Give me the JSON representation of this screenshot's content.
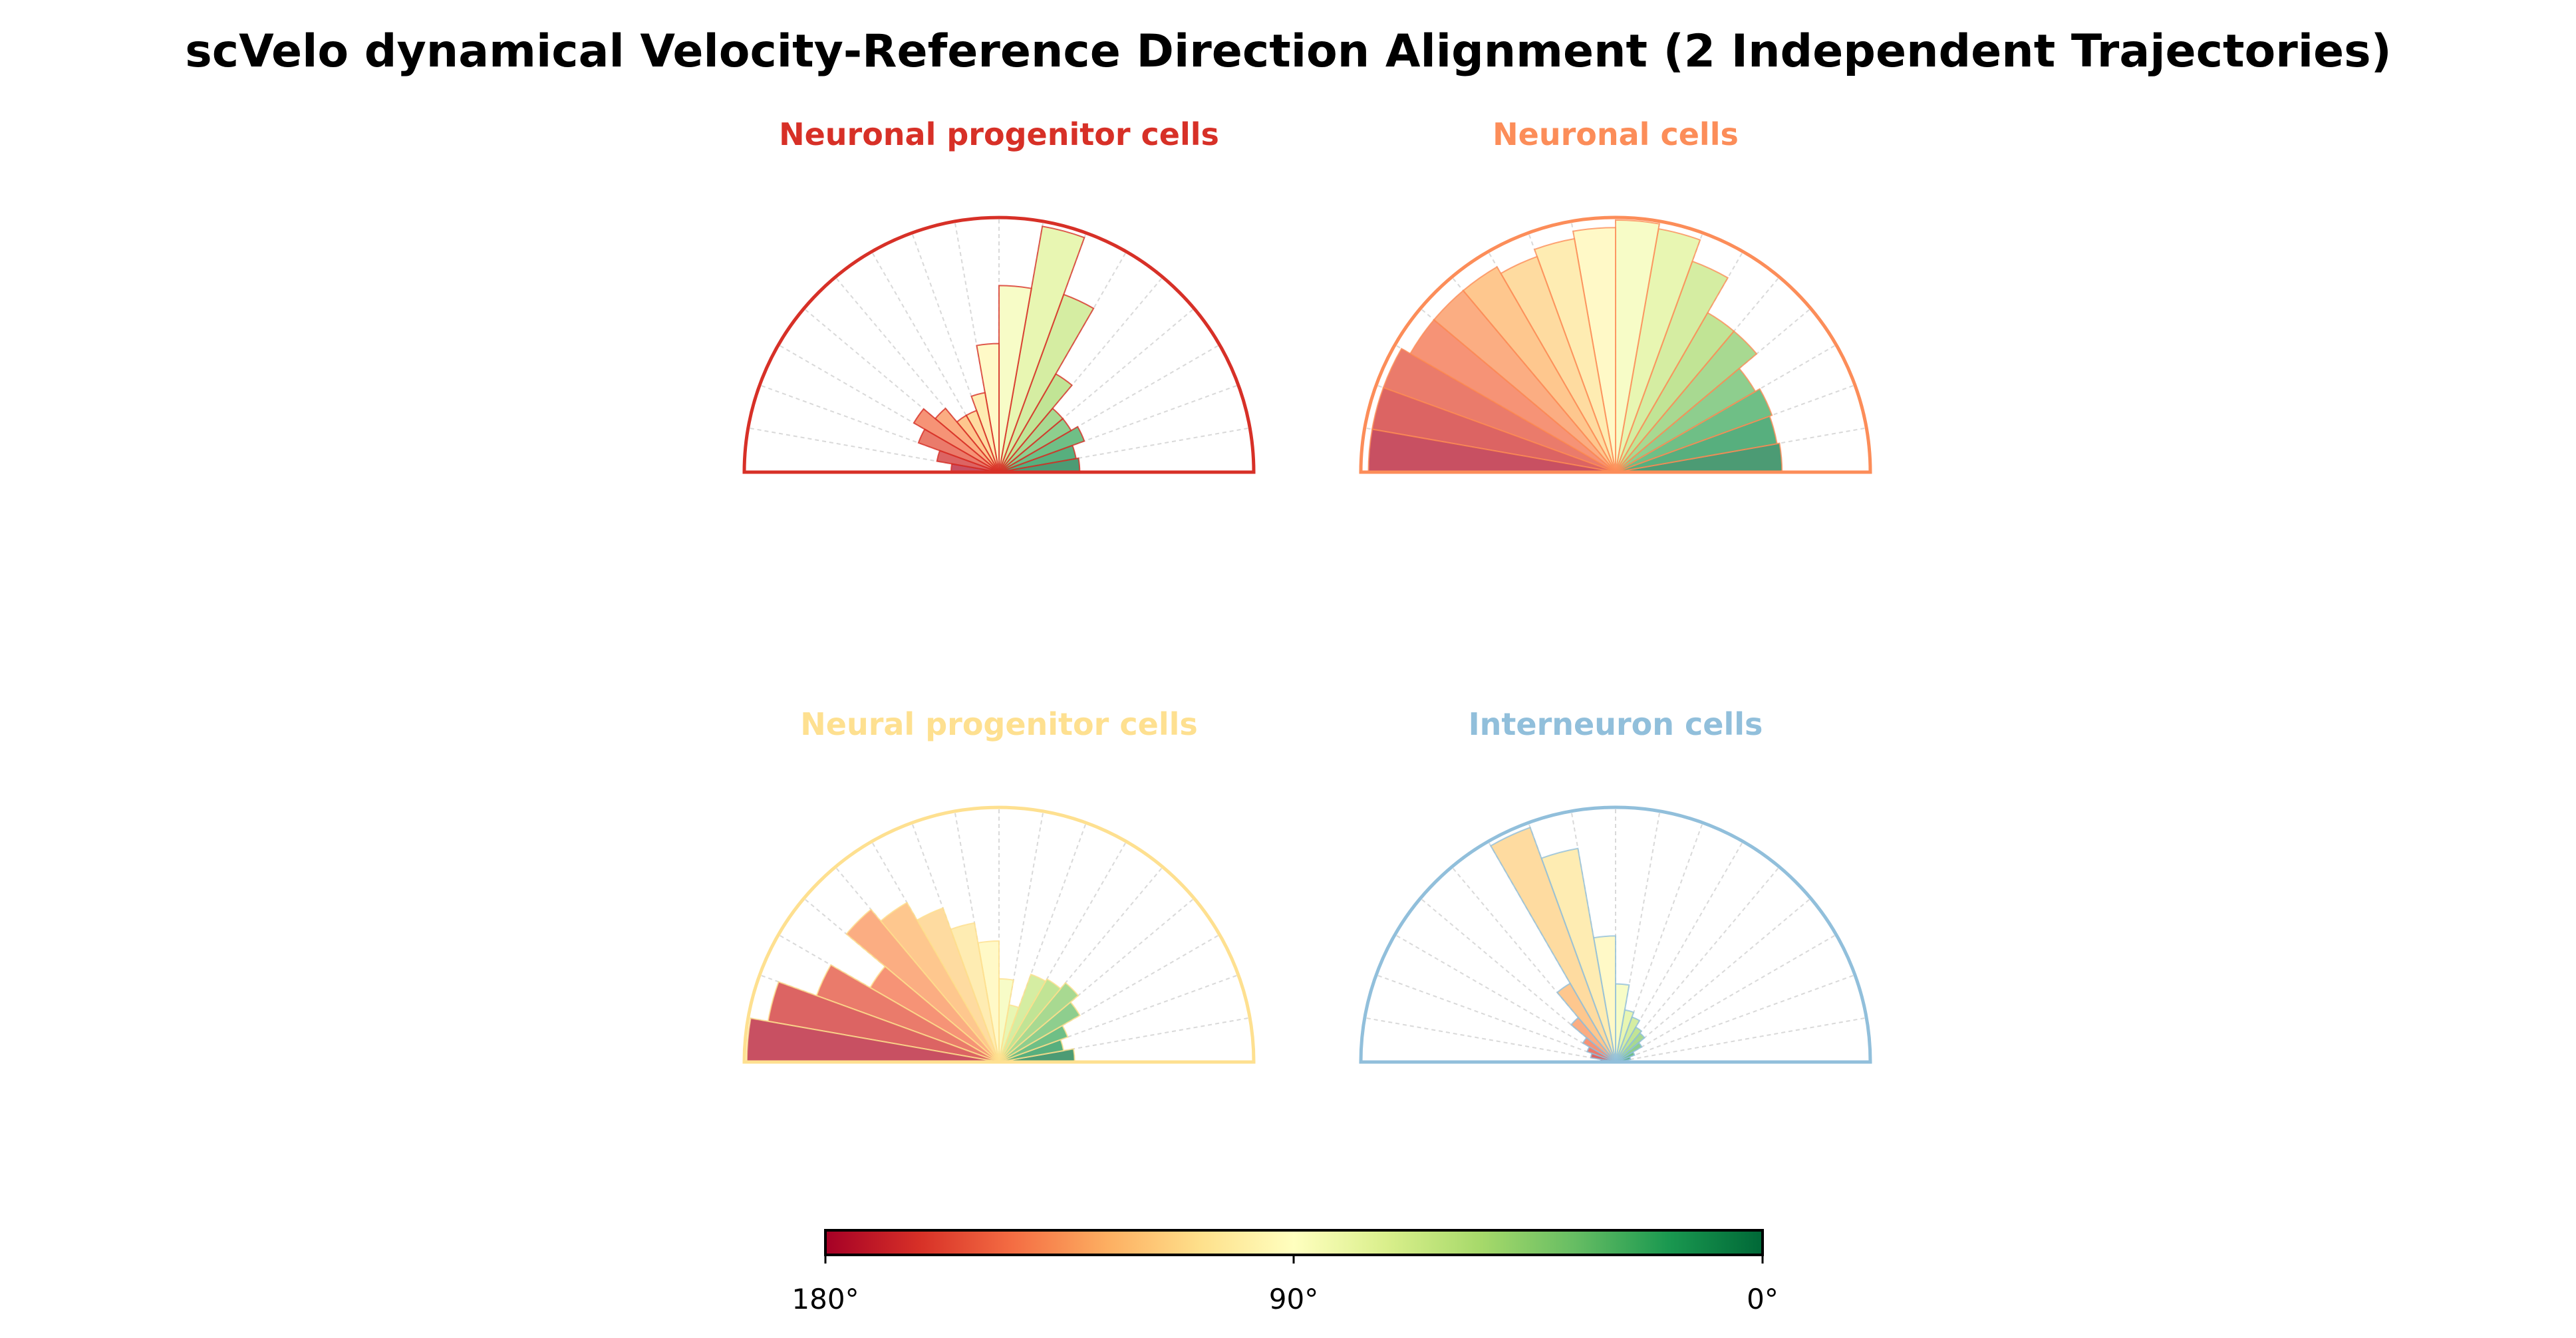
{
  "figure_title": "scVelo dynamical Velocity-Reference Direction Alignment (2 Independent Trajectories)",
  "chart_data": [
    {
      "type": "polar-bar",
      "title": "Neuronal progenitor cells",
      "title_color": "#d73027",
      "angle_range_deg": [
        0,
        180
      ],
      "bin_width_deg": 10,
      "bin_starts_deg": [
        0,
        10,
        20,
        30,
        40,
        50,
        60,
        70,
        80,
        90,
        100,
        110,
        120,
        130,
        140,
        150,
        160,
        170
      ],
      "values_relative": [
        0.32,
        0.31,
        0.36,
        0.33,
        0.33,
        0.45,
        0.75,
        0.99,
        0.74,
        0.51,
        0.32,
        0.26,
        0.26,
        0.33,
        0.39,
        0.34,
        0.25,
        0.19
      ]
    },
    {
      "type": "polar-bar",
      "title": "Neuronal cells",
      "title_color": "#fc8d59",
      "angle_range_deg": [
        0,
        180
      ],
      "bin_width_deg": 10,
      "bin_starts_deg": [
        0,
        10,
        20,
        30,
        40,
        50,
        60,
        70,
        80,
        90,
        100,
        110,
        120,
        130,
        140,
        150,
        160,
        170
      ],
      "values_relative": [
        0.66,
        0.65,
        0.66,
        0.64,
        0.73,
        0.73,
        0.89,
        0.98,
        1.0,
        0.97,
        0.94,
        0.91,
        0.94,
        0.94,
        0.94,
        0.98,
        0.98,
        0.98
      ]
    },
    {
      "type": "polar-bar",
      "title": "Neural progenitor cells",
      "title_color": "#fee090",
      "angle_range_deg": [
        0,
        180
      ],
      "bin_width_deg": 10,
      "bin_starts_deg": [
        0,
        10,
        20,
        30,
        40,
        50,
        60,
        70,
        80,
        90,
        100,
        110,
        120,
        130,
        140,
        150,
        160,
        170
      ],
      "values_relative": [
        0.3,
        0.26,
        0.29,
        0.37,
        0.41,
        0.38,
        0.37,
        0.23,
        0.33,
        0.48,
        0.56,
        0.65,
        0.73,
        0.79,
        0.59,
        0.77,
        0.93,
        1.0
      ]
    },
    {
      "type": "polar-bar",
      "title": "Interneuron cells",
      "title_color": "#91bfdb",
      "angle_range_deg": [
        0,
        180
      ],
      "bin_width_deg": 10,
      "bin_starts_deg": [
        0,
        10,
        20,
        30,
        40,
        50,
        60,
        70,
        80,
        90,
        100,
        110,
        120,
        130,
        140,
        150,
        160,
        170
      ],
      "values_relative": [
        0.05,
        0.06,
        0.08,
        0.12,
        0.15,
        0.16,
        0.19,
        0.21,
        0.31,
        0.5,
        0.86,
        0.99,
        0.36,
        0.23,
        0.15,
        0.12,
        0.1,
        0.06
      ]
    }
  ],
  "colorbar": {
    "colormap": "RdYlGn",
    "range_deg": [
      180,
      0
    ],
    "tick_labels": [
      "180°",
      "90°",
      "0°"
    ],
    "stops": [
      "#a50026",
      "#d73027",
      "#f46d43",
      "#fdae61",
      "#fee08b",
      "#ffffbf",
      "#d9ef8b",
      "#a6d96a",
      "#66bd63",
      "#1a9850",
      "#006837"
    ]
  }
}
